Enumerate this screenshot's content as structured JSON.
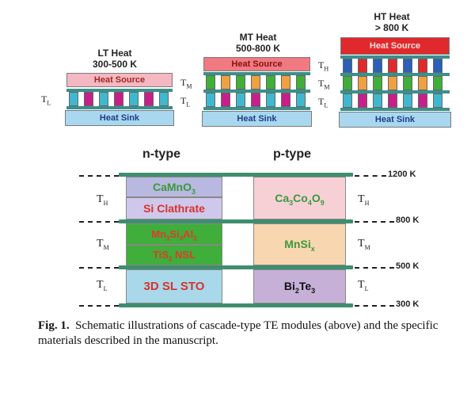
{
  "modules": [
    {
      "title_line1": "LT Heat",
      "title_line2": "300-500 K",
      "source": "Heat Source",
      "sink": "Heat Sink"
    },
    {
      "title_line1": "MT Heat",
      "title_line2": "500-800 K",
      "source": "Heat Source",
      "sink": "Heat Sink"
    },
    {
      "title_line1": "HT Heat",
      "title_line2": "> 800 K",
      "source": "Heat Source",
      "sink": "Heat Sink"
    }
  ],
  "temp_labels": {
    "th": "T",
    "th_sub": "H",
    "tm": "T",
    "tm_sub": "M",
    "tl": "T",
    "tl_sub": "L"
  },
  "stack": {
    "n_header": "n-type",
    "p_header": "p-type",
    "kelvin": [
      "1200 K",
      "800 K",
      "500 K",
      "300 K"
    ],
    "n_cells": {
      "camno_base": "CaMnO",
      "camno_sub": "3",
      "si_clathrate": "Si Clathrate",
      "mn_a": "Mn",
      "mn_a_sub": "3",
      "mn_b": "Si",
      "mn_b_sub": "4",
      "mn_c": "Al",
      "mn_c_sub": "2",
      "tis_a": "TiS",
      "tis_sub": "2",
      "tis_b": " NSL",
      "sto": "3D SL STO"
    },
    "p_cells": {
      "caco_a": "Ca",
      "caco_a_sub": "3",
      "caco_b": "Co",
      "caco_b_sub": "4",
      "caco_c": "O",
      "caco_c_sub": "9",
      "mnsi": "MnSi",
      "mnsi_sub": "x",
      "bite_a": "Bi",
      "bite_a_sub": "2",
      "bite_b": "Te",
      "bite_b_sub": "3"
    }
  },
  "caption": {
    "label": "Fig. 1.",
    "text": "Schematic illustrations of cascade-type TE modules (above) and the specific materials described in the manuscript."
  },
  "colors": {
    "lt_source": "#f4b8c2",
    "mt_source": "#f07a82",
    "ht_source": "#e0292c",
    "sink": "#a9d7ef",
    "leg_cyan": "#3fb8cf",
    "leg_magenta": "#c81e8a",
    "leg_orange": "#f0a040",
    "leg_green": "#3faf3a",
    "leg_blue": "#2b5fb8",
    "leg_red": "#e0292c"
  }
}
